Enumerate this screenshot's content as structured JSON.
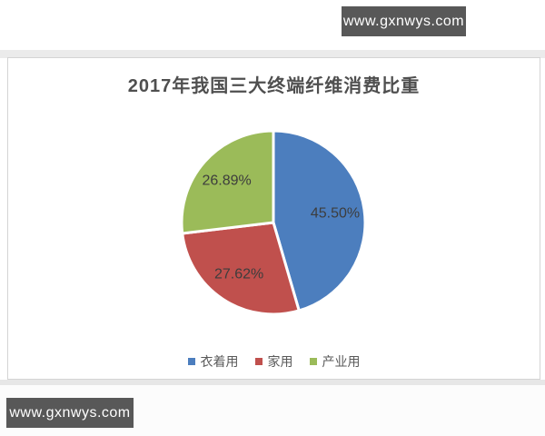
{
  "watermark": {
    "text": "www.gxnwys.com",
    "background_color": "#585858",
    "text_color": "#ffffff"
  },
  "chart_data": {
    "type": "pie",
    "title": "2017年我国三大终端纤维消费比重",
    "slices": [
      {
        "name": "衣着用",
        "value": 45.5,
        "label": "45.50%",
        "color": "#4C7EBE"
      },
      {
        "name": "家用",
        "value": 27.62,
        "label": "27.62%",
        "color": "#C0504D"
      },
      {
        "name": "产业用",
        "value": 26.89,
        "label": "26.89%",
        "color": "#9BBB59"
      }
    ],
    "start_angle_deg": 0,
    "direction": "clockwise",
    "legend_position": "bottom",
    "label_color": "#3d3d3d",
    "slice_border_color": "#ffffff"
  }
}
